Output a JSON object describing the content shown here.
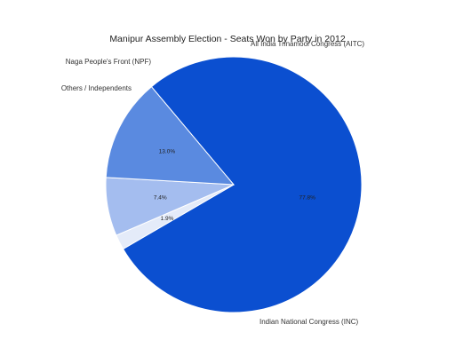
{
  "chart_data": {
    "type": "pie",
    "title": "Manipur Assembly Election - Seats Won by Party in 2012",
    "start_angle_deg": -40,
    "direction": "clockwise",
    "slices": [
      {
        "label": "Indian National Congress (INC)",
        "value": 77.8,
        "pct_label": "77.8%",
        "color": "#0b4fd0"
      },
      {
        "label": "Others / Independents",
        "value": 1.9,
        "pct_label": "1.9%",
        "color": "#e4ebf9"
      },
      {
        "label": "Naga People's Front (NPF)",
        "value": 7.4,
        "pct_label": "7.4%",
        "color": "#a4bdef"
      },
      {
        "label": "All India Trinamool Congress (AITC)",
        "value": 13.0,
        "pct_label": "13.0%",
        "color": "#5a8ae0"
      }
    ]
  }
}
